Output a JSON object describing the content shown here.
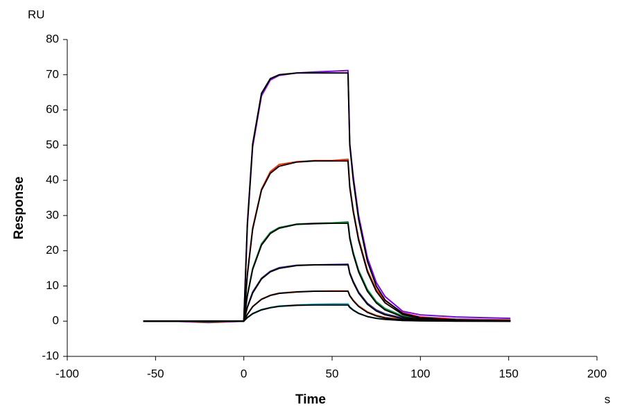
{
  "chart_data": {
    "type": "line",
    "y_unit": "RU",
    "y_label": "Response",
    "x_label": "Time",
    "x_unit": "s",
    "x": [
      -57,
      -40,
      -20,
      0,
      2,
      5,
      10,
      15,
      20,
      30,
      40,
      50,
      59,
      60,
      62,
      65,
      70,
      75,
      80,
      90,
      100,
      120,
      151
    ],
    "series": [
      {
        "color": "#8000ff",
        "values": [
          0,
          0,
          -0.4,
          0,
          27,
          49.5,
          64,
          68.5,
          69.8,
          70.5,
          70.8,
          71,
          71.2,
          50.5,
          41,
          30,
          18,
          11,
          7,
          2.8,
          1.8,
          1.2,
          0.8
        ]
      },
      {
        "color": "#ff3300",
        "values": [
          0,
          0,
          -0.2,
          0,
          13.5,
          26.5,
          37.5,
          42.5,
          44.5,
          45.3,
          45.6,
          45.6,
          46,
          38.5,
          31.5,
          23.5,
          14.5,
          9,
          5.8,
          2.4,
          1.2,
          0.6,
          0.4
        ]
      },
      {
        "color": "#00a040",
        "values": [
          0,
          0,
          -0.1,
          0,
          7.5,
          15,
          22,
          25.2,
          26.6,
          27.6,
          27.8,
          27.9,
          28.2,
          24,
          19.5,
          14.5,
          9,
          5.6,
          3.6,
          1.5,
          0.8,
          0.4,
          0.3
        ]
      },
      {
        "color": "#4b2fa0",
        "values": [
          0,
          0,
          -0.1,
          0,
          4.1,
          8.3,
          12.2,
          14.2,
          15.2,
          15.9,
          16,
          16.1,
          16.2,
          13.8,
          11.3,
          8.3,
          5.1,
          3.2,
          2.1,
          0.9,
          0.5,
          0.3,
          0.2
        ]
      },
      {
        "color": "#ff8040",
        "values": [
          0,
          0,
          0,
          0,
          2,
          4.2,
          6.3,
          7.4,
          8,
          8.4,
          8.5,
          8.6,
          8.6,
          7.4,
          6,
          4.4,
          2.7,
          1.7,
          1.1,
          0.5,
          0.3,
          0.2,
          0.1
        ]
      },
      {
        "color": "#00b0c0",
        "values": [
          0,
          0,
          0,
          0,
          1.1,
          2.2,
          3.3,
          3.9,
          4.3,
          4.6,
          4.8,
          4.9,
          4.9,
          4.1,
          3.2,
          2.3,
          1.3,
          0.8,
          0.5,
          0.2,
          0.1,
          0.05,
          0
        ]
      },
      {
        "color": "#000000",
        "values": [
          0,
          0,
          0,
          0,
          27.7,
          50.3,
          64.7,
          68.9,
          70.0,
          70.5,
          70.5,
          70.5,
          70.5,
          50,
          40,
          29,
          17,
          10,
          6,
          2.2,
          1,
          0.4,
          0.1
        ]
      },
      {
        "color": "#000000",
        "values": [
          0,
          0,
          0,
          0,
          13.1,
          26.1,
          37.2,
          42.0,
          44.0,
          45.2,
          45.5,
          45.5,
          45.5,
          38,
          31,
          23,
          14,
          8.5,
          5.2,
          1.9,
          0.8,
          0.3,
          0.1
        ]
      },
      {
        "color": "#000000",
        "values": [
          0,
          0,
          0,
          0,
          7.2,
          14.7,
          21.6,
          24.9,
          26.4,
          27.5,
          27.7,
          27.8,
          27.8,
          23.5,
          19,
          14,
          8.5,
          5.2,
          3.2,
          1.2,
          0.5,
          0.2,
          0.05
        ]
      },
      {
        "color": "#000000",
        "values": [
          0,
          0,
          0,
          0,
          3.9,
          8.0,
          12.0,
          14.0,
          15.0,
          15.8,
          16,
          16,
          16,
          13.5,
          11,
          8,
          4.8,
          2.9,
          1.8,
          0.7,
          0.3,
          0.1,
          0
        ]
      },
      {
        "color": "#000000",
        "values": [
          0,
          0,
          0,
          0,
          1.9,
          4.1,
          6.2,
          7.3,
          7.9,
          8.3,
          8.5,
          8.5,
          8.5,
          7.2,
          5.8,
          4.2,
          2.5,
          1.5,
          0.9,
          0.35,
          0.15,
          0.05,
          0
        ]
      },
      {
        "color": "#000000",
        "values": [
          0,
          0,
          0,
          0,
          1.0,
          2.1,
          3.2,
          3.8,
          4.2,
          4.5,
          4.6,
          4.6,
          4.6,
          3.9,
          3.1,
          2.2,
          1.3,
          0.8,
          0.5,
          0.2,
          0.1,
          0,
          0
        ]
      }
    ],
    "xlim": [
      -100,
      200
    ],
    "xticks": [
      -100,
      -50,
      0,
      50,
      100,
      150,
      200
    ],
    "ylim": [
      -10,
      80
    ],
    "yticks": [
      -10,
      0,
      10,
      20,
      30,
      40,
      50,
      60,
      70,
      80
    ]
  }
}
